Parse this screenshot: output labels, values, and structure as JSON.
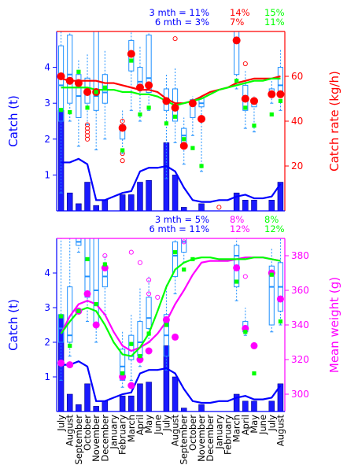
{
  "colors": {
    "blue": "#0000ff",
    "bar": "#1a1aff",
    "box": "#1e90ff",
    "red": "#ff0000",
    "green": "#00ff00",
    "magenta": "#ff00ff",
    "outlier_red": "#ff0000",
    "outlier_magenta": "#ff00ff"
  },
  "months": [
    "July",
    "August",
    "September",
    "October",
    "November",
    "December",
    "January",
    "February",
    "March",
    "April",
    "May",
    "June",
    "July",
    "August",
    "September",
    "October",
    "November",
    "December",
    "January",
    "February",
    "March",
    "April",
    "May",
    "June",
    "July",
    "August"
  ],
  "chart_data": [
    {
      "type": "bar",
      "panel": "top",
      "ylabel_left": "Catch (t)",
      "ylabel_right": "Catch rate (kg/h)",
      "ylim_left": [
        0,
        5
      ],
      "yticks_left": [
        1,
        2,
        3,
        4
      ],
      "ylim_right": [
        0,
        80
      ],
      "yticks_right": [
        20,
        40,
        60
      ],
      "stats": [
        {
          "label": "3 mth = 11%",
          "red": "14%",
          "green": "15%"
        },
        {
          "label": "6 mth = 3%",
          "red": "7%",
          "green": "11%"
        }
      ],
      "series": [
        {
          "name": "catch_bars",
          "values": [
            2.8,
            0.5,
            0.2,
            0.8,
            0.15,
            0.3,
            0,
            0.45,
            0.45,
            0.8,
            0.85,
            0,
            1.9,
            1.0,
            0.1,
            0,
            0.2,
            0,
            0,
            0,
            0.5,
            0.3,
            0.3,
            0,
            0.3,
            0.8
          ]
        },
        {
          "name": "catch_line",
          "values": [
            1.35,
            1.35,
            1.45,
            1.3,
            0.3,
            0.3,
            0.4,
            0.5,
            0.55,
            1.1,
            1.2,
            1.2,
            1.25,
            1.1,
            0.65,
            0.3,
            0.25,
            0.25,
            0.3,
            0.3,
            0.4,
            0.45,
            0.35,
            0.35,
            0.4,
            0.75
          ]
        },
        {
          "name": "red_line",
          "values": [
            59,
            58,
            58,
            58,
            58,
            57,
            57,
            56,
            55,
            54,
            54,
            53,
            50,
            48,
            48,
            49,
            51,
            53,
            54,
            55,
            57,
            58,
            59,
            59,
            59,
            60
          ]
        },
        {
          "name": "green_line",
          "values": [
            55,
            55,
            55,
            55,
            54,
            54,
            54,
            53,
            53,
            52,
            52,
            51,
            49,
            47,
            48,
            49,
            50,
            52,
            54,
            55,
            56,
            57,
            58,
            58,
            59,
            59
          ]
        },
        {
          "name": "red_points",
          "values": [
            60,
            58,
            57,
            53,
            53,
            null,
            null,
            37,
            70,
            55,
            56,
            null,
            49,
            46,
            29,
            48,
            41,
            null,
            null,
            null,
            76,
            50,
            49,
            null,
            52,
            52
          ]
        },
        {
          "name": "green_points",
          "values": [
            45,
            44,
            62,
            46,
            53,
            55,
            null,
            27,
            67,
            43,
            46,
            null,
            39,
            42,
            32,
            28,
            20,
            null,
            null,
            null,
            58,
            46,
            38,
            null,
            43,
            49
          ]
        }
      ],
      "boxes": [
        {
          "lo": 0.5,
          "q1": 2.5,
          "med": 3.5,
          "q3": 4.6,
          "hi": 5
        },
        {
          "lo": 2.5,
          "q1": 3.0,
          "med": 3.8,
          "q3": 4.9,
          "hi": 5
        },
        {
          "lo": 1.8,
          "q1": 2.6,
          "med": 3.2,
          "q3": 3.8,
          "hi": 4.2
        },
        {
          "lo": 2.4,
          "q1": 3.0,
          "med": 3.3,
          "q3": 3.7,
          "hi": 4.4
        },
        {
          "lo": 1.7,
          "q1": 2.8,
          "med": 3.2,
          "q3": 5.0,
          "hi": 5
        },
        {
          "lo": 2.0,
          "q1": 3.0,
          "med": 3.3,
          "q3": 3.8,
          "hi": 4.5
        },
        null,
        {
          "lo": 1.6,
          "q1": 2.0,
          "med": 2.3,
          "q3": 2.4,
          "hi": 2.8
        },
        {
          "lo": 2.8,
          "q1": 3.9,
          "med": 4.4,
          "q3": 4.75,
          "hi": 5
        },
        {
          "lo": 2.5,
          "q1": 3.5,
          "med": 3.6,
          "q3": 4.0,
          "hi": 4.6
        },
        {
          "lo": 2.8,
          "q1": 3.3,
          "med": 3.7,
          "q3": 4.9,
          "hi": 5
        },
        null,
        {
          "lo": 0.9,
          "q1": 2.8,
          "med": 3.0,
          "q3": 3.4,
          "hi": 3.8
        },
        {
          "lo": 1.9,
          "q1": 2.5,
          "med": 2.8,
          "q3": 3.4,
          "hi": 4.0
        },
        {
          "lo": 1.3,
          "q1": 1.8,
          "med": 2.1,
          "q3": 2.3,
          "hi": 2.6
        },
        {
          "lo": 2.1,
          "q1": 2.6,
          "med": 3.0,
          "q3": 3.1,
          "hi": 3.2
        },
        {
          "lo": 1.1,
          "q1": 2.9,
          "med": 3.0,
          "q3": 3.15,
          "hi": 3.2
        },
        null,
        null,
        null,
        {
          "lo": 3.4,
          "q1": 3.8,
          "med": 4.7,
          "q3": 5.0,
          "hi": 5
        },
        {
          "lo": 2.3,
          "q1": 2.8,
          "med": 3.2,
          "q3": 3.5,
          "hi": 3.9
        },
        {
          "lo": 2.2,
          "q1": 2.9,
          "med": 3.0,
          "q3": 3.1,
          "hi": 3.2
        },
        null,
        {
          "lo": 3.0,
          "q1": 3.2,
          "med": 3.3,
          "q3": 3.4,
          "hi": 3.7
        },
        {
          "lo": 2.8,
          "q1": 3.2,
          "med": 3.5,
          "q3": 4.0,
          "hi": 4.5
        }
      ],
      "outliers": [
        {
          "x": 3,
          "y": 2.4
        },
        {
          "x": 3,
          "y": 2.3
        },
        {
          "x": 3,
          "y": 2.2
        },
        {
          "x": 3,
          "y": 2.1
        },
        {
          "x": 3,
          "y": 2.0
        },
        {
          "x": 7,
          "y": 2.5
        },
        {
          "x": 7,
          "y": 1.6
        },
        {
          "x": 7,
          "y": 1.4
        },
        {
          "x": 13,
          "y": 4.8
        },
        {
          "x": 18,
          "y": 0.1
        },
        {
          "x": 21,
          "y": 4.1
        }
      ]
    },
    {
      "type": "bar",
      "panel": "bottom",
      "ylabel_left": "Catch (t)",
      "ylabel_right": "Mean weight (g)",
      "ylim_left": [
        0,
        5
      ],
      "yticks_left": [
        1,
        2,
        3,
        4
      ],
      "ylim_right": [
        290,
        390
      ],
      "yticks_right": [
        300,
        320,
        340,
        360,
        380
      ],
      "stats": [
        {
          "label": "3 mth = 5%",
          "magenta": "8%",
          "green": "8%"
        },
        {
          "label": "6 mth = 11%",
          "magenta": "12%",
          "green": "12%"
        }
      ],
      "series": [
        {
          "name": "catch_bars",
          "values": [
            2.8,
            0.5,
            0.2,
            0.8,
            0.15,
            0.3,
            0,
            0.45,
            0.45,
            0.8,
            0.85,
            0,
            1.9,
            1.0,
            0.1,
            0,
            0.2,
            0,
            0,
            0,
            0.5,
            0.3,
            0.3,
            0,
            0.3,
            0.8
          ]
        },
        {
          "name": "catch_line",
          "values": [
            1.35,
            1.35,
            1.45,
            1.3,
            0.3,
            0.3,
            0.4,
            0.5,
            0.55,
            1.1,
            1.2,
            1.2,
            1.25,
            1.1,
            0.65,
            0.3,
            0.25,
            0.25,
            0.3,
            0.3,
            0.4,
            0.45,
            0.35,
            0.35,
            0.4,
            0.75
          ]
        },
        {
          "name": "magenta_line",
          "values": [
            335,
            345,
            352,
            354,
            352,
            346,
            336,
            328,
            325,
            327,
            330,
            335,
            342,
            352,
            360,
            369,
            376,
            377,
            377,
            377,
            378,
            379,
            379,
            379,
            378,
            377
          ]
        },
        {
          "name": "green_line",
          "values": [
            335,
            342,
            348,
            350,
            348,
            340,
            330,
            323,
            322,
            327,
            335,
            348,
            362,
            372,
            376,
            378,
            379,
            379,
            378,
            378,
            378,
            378,
            379,
            379,
            378,
            377
          ]
        },
        {
          "name": "magenta_points",
          "values": [
            318,
            317,
            348,
            358,
            340,
            373,
            null,
            310,
            305,
            320,
            325,
            null,
            343,
            333,
            null,
            null,
            null,
            null,
            null,
            null,
            373,
            338,
            328,
            null,
            370,
            355
          ]
        },
        {
          "name": "green_points",
          "values": [
            345,
            328,
            348,
            378,
            352,
            375,
            null,
            312,
            329,
            322,
            335,
            null,
            340,
            382,
            372,
            378,
            null,
            null,
            null,
            null,
            365,
            336,
            312,
            null,
            369,
            342
          ]
        }
      ],
      "boxes": [
        {
          "lo": 0.9,
          "q1": 2.0,
          "med": 2.4,
          "q3": 2.8,
          "hi": 5
        },
        {
          "lo": 1.6,
          "q1": 2.0,
          "med": 2.2,
          "q3": 3.6,
          "hi": 5
        },
        {
          "lo": 4.6,
          "q1": 4.8,
          "med": 4.9,
          "q3": 5.0,
          "hi": 5
        },
        {
          "lo": 2.6,
          "q1": 3.3,
          "med": 3.9,
          "q3": 5.0,
          "hi": 5
        },
        {
          "lo": 2.0,
          "q1": 2.5,
          "med": 3.5,
          "q3": 5.0,
          "hi": 5
        },
        {
          "lo": 2.8,
          "q1": 3.6,
          "med": 3.9,
          "q3": 4.1,
          "hi": 4.5
        },
        null,
        {
          "lo": 0.7,
          "q1": 0.9,
          "med": 1.3,
          "q3": 1.8,
          "hi": 2.3
        },
        {
          "lo": 0.9,
          "q1": 1.5,
          "med": 1.6,
          "q3": 2.2,
          "hi": 2.8
        },
        {
          "lo": 1.3,
          "q1": 1.6,
          "med": 2.0,
          "q3": 2.6,
          "hi": 3.6
        },
        {
          "lo": 2.0,
          "q1": 2.4,
          "med": 2.7,
          "q3": 3.3,
          "hi": 3.9
        },
        null,
        {
          "lo": 1.2,
          "q1": 1.6,
          "med": 2.2,
          "q3": 2.8,
          "hi": 3.7
        },
        {
          "lo": 3.4,
          "q1": 3.9,
          "med": 4.5,
          "q3": 4.9,
          "hi": 5
        },
        {
          "lo": 4.3,
          "q1": 4.6,
          "med": 4.9,
          "q3": 5.0,
          "hi": 5
        },
        null,
        null,
        null,
        null,
        null,
        {
          "lo": 3.2,
          "q1": 3.6,
          "med": 4.5,
          "q3": 4.8,
          "hi": 5
        },
        {
          "lo": 2.2,
          "q1": 2.3,
          "med": 2.4,
          "q3": 2.6,
          "hi": 3.0
        },
        null,
        null,
        {
          "lo": 2.3,
          "q1": 2.5,
          "med": 3.6,
          "q3": 4.2,
          "hi": 4.7
        },
        {
          "lo": 2.5,
          "q1": 2.9,
          "med": 3.6,
          "q3": 4.3,
          "hi": 5
        }
      ],
      "outliers": [
        {
          "x": 5,
          "y": 4.5
        },
        {
          "x": 8,
          "y": 4.6
        },
        {
          "x": 9,
          "y": 4.3
        },
        {
          "x": 10,
          "y": 3.8
        },
        {
          "x": 10,
          "y": 3.4
        },
        {
          "x": 11,
          "y": 3.3
        },
        {
          "x": 14,
          "y": 4.9
        },
        {
          "x": 21,
          "y": 3.9
        }
      ]
    }
  ]
}
